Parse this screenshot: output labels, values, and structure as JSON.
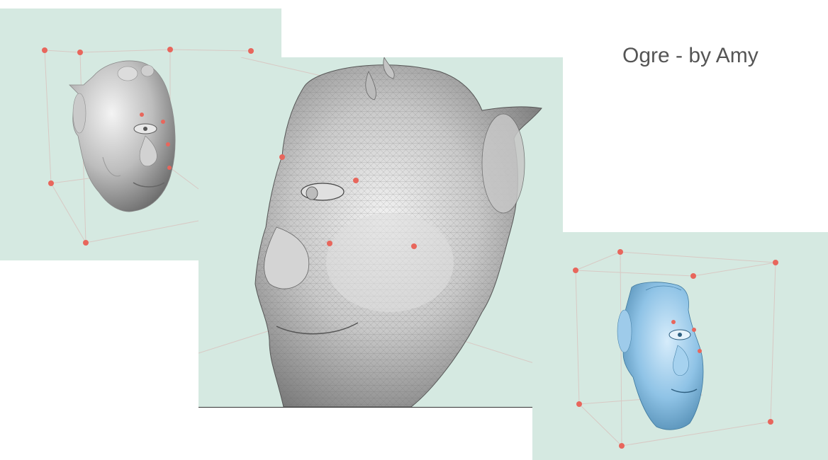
{
  "title": "Ogre - by Amy",
  "colors": {
    "canvas_bg": "#d5e9e1",
    "control_point": "#e8665c",
    "cage_line": "#d8c9c4",
    "mesh_gray": "#b8b8b8",
    "mesh_blue": "#8fc3e6"
  },
  "viewports": [
    {
      "id": "left",
      "content": "ogre-head-smooth-view"
    },
    {
      "id": "center",
      "content": "ogre-head-wireframe-view"
    },
    {
      "id": "right",
      "content": "ogre-head-deformed-blue-view"
    }
  ]
}
